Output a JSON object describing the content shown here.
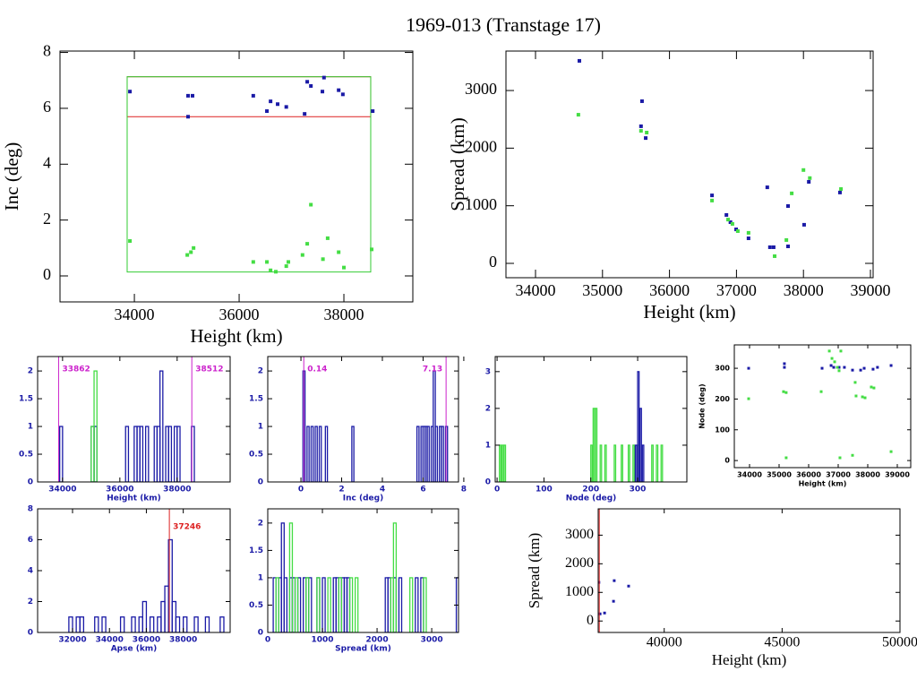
{
  "title": "1969-013 (Transtage 17)",
  "chart_data": [
    {
      "type": "scatter",
      "xlabel": "Height (km)",
      "ylabel": "Inc (deg)",
      "text_color": "#000000",
      "xlim": [
        32580,
        39316
      ],
      "ylim": [
        -0.93,
        8.05
      ],
      "xticks": [
        34000,
        36000,
        38000
      ],
      "yticks": [
        0,
        2,
        4,
        6,
        8
      ],
      "boxes": [
        {
          "color": "#dd2222",
          "xrange": [
            33862,
            38512
          ],
          "yrange": [
            5.7,
            7.13
          ]
        },
        {
          "color": "#33cc33",
          "xrange": [
            33862,
            38512
          ],
          "yrange": [
            0.14,
            7.13
          ]
        }
      ],
      "series": [
        {
          "color": "#1a1aa6",
          "x": [
            33915,
            35025,
            35110,
            35025,
            36270,
            36530,
            36600,
            36735,
            36900,
            37250,
            37300,
            37370,
            37620,
            37590,
            37900,
            37980,
            38550
          ],
          "values": [
            6.6,
            6.45,
            6.45,
            5.7,
            6.45,
            5.9,
            6.25,
            6.15,
            6.05,
            5.8,
            6.95,
            6.8,
            7.1,
            6.6,
            6.65,
            6.5,
            5.9
          ]
        },
        {
          "color": "#44dd44",
          "x": [
            33915,
            35010,
            35080,
            35130,
            36270,
            36530,
            36600,
            36700,
            36900,
            36940,
            37210,
            37300,
            37370,
            37600,
            37690,
            37900,
            38000,
            38530
          ],
          "values": [
            1.25,
            0.75,
            0.85,
            1.0,
            0.5,
            0.5,
            0.2,
            0.15,
            0.35,
            0.5,
            0.75,
            1.15,
            2.55,
            0.6,
            1.35,
            0.85,
            0.3,
            0.95
          ]
        }
      ]
    },
    {
      "type": "scatter",
      "xlabel": "Height (km)",
      "ylabel": "Spread (km)",
      "text_color": "#000000",
      "xlim": [
        33559,
        39040
      ],
      "ylim": [
        -249,
        3685
      ],
      "xticks": [
        34000,
        35000,
        36000,
        37000,
        38000,
        39000
      ],
      "yticks": [
        0,
        1000,
        2000,
        3000
      ],
      "series": [
        {
          "color": "#1a1aa6",
          "x": [
            34655,
            35590,
            35575,
            35645,
            36635,
            36850,
            36910,
            36995,
            37180,
            37460,
            37500,
            37555,
            37770,
            37770,
            38010,
            38080,
            38545
          ],
          "values": [
            3515,
            2815,
            2380,
            2175,
            1180,
            840,
            715,
            590,
            435,
            1320,
            280,
            280,
            995,
            295,
            670,
            1415,
            1230
          ]
        },
        {
          "color": "#44dd44",
          "x": [
            34640,
            35575,
            35660,
            36635,
            36875,
            36940,
            37020,
            37180,
            37570,
            37745,
            37825,
            38000,
            38095,
            38560
          ],
          "values": [
            2580,
            2300,
            2270,
            1090,
            760,
            685,
            560,
            530,
            125,
            405,
            1215,
            1620,
            1480,
            1290
          ]
        }
      ]
    },
    {
      "type": "histogram",
      "xlabel": "Height (km)",
      "text_color": "#1a1aa6",
      "bin_width": 100,
      "xlim": [
        33129,
        39850
      ],
      "ylim": [
        0,
        2.26
      ],
      "xticks": [
        34000,
        36000,
        38000
      ],
      "yticks": [
        0,
        0.5,
        1,
        1.5,
        2
      ],
      "vlines": [
        {
          "color": "#cc22cc",
          "value": 33862,
          "label": "33862"
        },
        {
          "color": "#cc22cc",
          "value": 38512,
          "label": "38512"
        }
      ],
      "series": [
        {
          "color": "#1a1aa6",
          "x": [
            33900,
            35000,
            35100,
            36200,
            36500,
            36600,
            36700,
            36900,
            37200,
            37300,
            37400,
            37600,
            37700,
            37900,
            38000,
            38500
          ],
          "values": [
            1,
            1,
            1,
            1,
            1,
            1,
            1,
            1,
            1,
            1,
            2,
            1,
            1,
            1,
            1,
            1
          ]
        },
        {
          "color": "#44dd44",
          "x": [
            35000,
            35100
          ],
          "values": [
            1,
            2
          ]
        }
      ]
    },
    {
      "type": "histogram",
      "xlabel": "Inc (deg)",
      "text_color": "#1a1aa6",
      "bin_width": 0.1,
      "xlim": [
        -1.63,
        7.74
      ],
      "ylim": [
        0,
        2.26
      ],
      "xticks": [
        0,
        2,
        4,
        6,
        8
      ],
      "yticks": [
        0,
        0.5,
        1,
        1.5,
        2
      ],
      "vlines": [
        {
          "color": "#cc22cc",
          "value": 0.14,
          "label": "0.14"
        },
        {
          "color": "#cc22cc",
          "value": 7.13,
          "label": "7.13"
        }
      ],
      "series": [
        {
          "color": "#1a1aa6",
          "x": [
            0.1,
            0.3,
            0.5,
            0.7,
            0.9,
            1.2,
            2.5,
            5.7,
            5.9,
            6.0,
            6.1,
            6.2,
            6.4,
            6.5,
            6.6,
            6.8,
            6.9,
            7.1
          ],
          "values": [
            2,
            1,
            1,
            1,
            1,
            1,
            1,
            1,
            1,
            1,
            1,
            1,
            1,
            2,
            1,
            1,
            1,
            1
          ]
        }
      ]
    },
    {
      "type": "histogram",
      "xlabel": "Node (deg)",
      "text_color": "#1a1aa6",
      "bin_width": 3,
      "xlim": [
        -4,
        405
      ],
      "ylim": [
        0,
        3.41
      ],
      "xticks": [
        0,
        100,
        200,
        300
      ],
      "yticks": [
        0,
        1,
        2,
        3
      ],
      "series": [
        {
          "color": "#44dd44",
          "x": [
            5,
            10,
            15,
            200,
            205,
            210,
            220,
            230,
            250,
            265,
            280,
            290,
            300,
            330,
            340,
            350
          ],
          "values": [
            1,
            1,
            1,
            1,
            2,
            2,
            1,
            1,
            1,
            1,
            1,
            1,
            1,
            1,
            1,
            1
          ]
        },
        {
          "color": "#1a1aa6",
          "x": [
            295,
            300,
            305,
            310
          ],
          "values": [
            1,
            3,
            2,
            1
          ]
        }
      ]
    },
    {
      "type": "scatter",
      "xlabel": "Height (km)",
      "ylabel": "Node (deg)",
      "text_color": "#000000",
      "xlim": [
        33485,
        39455
      ],
      "ylim": [
        -23,
        376
      ],
      "xticks": [
        34000,
        35000,
        36000,
        37000,
        38000,
        39000
      ],
      "yticks": [
        0,
        100,
        200,
        300
      ],
      "series": [
        {
          "color": "#1a1aa6",
          "x": [
            33970,
            35180,
            35180,
            36455,
            36760,
            36850,
            37030,
            37210,
            37485,
            37760,
            37880,
            38180,
            38330,
            38790
          ],
          "values": [
            300,
            315,
            303,
            300,
            309,
            303,
            303,
            303,
            294,
            294,
            300,
            297,
            303,
            309
          ]
        },
        {
          "color": "#44dd44",
          "x": [
            33970,
            35150,
            35240,
            35240,
            36425,
            36700,
            36790,
            36880,
            36970,
            37030,
            37090,
            37060,
            37485,
            37575,
            37605,
            37820,
            37910,
            38120,
            38210,
            38790
          ],
          "values": [
            201,
            224,
            221,
            9,
            224,
            356,
            332,
            321,
            303,
            292,
            356,
            9,
            17,
            254,
            210,
            207,
            204,
            239,
            236,
            29
          ]
        }
      ]
    },
    {
      "type": "histogram",
      "xlabel": "Apse (km)",
      "text_color": "#1a1aa6",
      "bin_width": 200,
      "xlim": [
        30107,
        40540
      ],
      "ylim": [
        0,
        8.0
      ],
      "xticks": [
        32000,
        34000,
        36000,
        38000
      ],
      "yticks": [
        0,
        2,
        4,
        6,
        8
      ],
      "vlines": [
        {
          "color": "#dd2222",
          "value": 37246,
          "label": "37246"
        }
      ],
      "series": [
        {
          "color": "#1a1aa6",
          "x": [
            31800,
            32200,
            32400,
            33200,
            33600,
            34600,
            35200,
            35600,
            35800,
            36200,
            36600,
            36800,
            37000,
            37200,
            37400,
            37600,
            38000,
            38600,
            39200,
            40000
          ],
          "values": [
            1,
            1,
            1,
            1,
            1,
            1,
            1,
            1,
            2,
            1,
            1,
            2,
            3,
            6,
            2,
            1,
            1,
            1,
            1,
            1
          ]
        }
      ]
    },
    {
      "type": "histogram",
      "xlabel": "Spread (km)",
      "text_color": "#1a1aa6",
      "bin_width": 50,
      "xlim": [
        0,
        3490
      ],
      "ylim": [
        0,
        2.26
      ],
      "xticks": [
        0,
        1000,
        2000,
        3000
      ],
      "yticks": [
        0,
        0.5,
        1,
        1.5,
        2
      ],
      "series": [
        {
          "color": "#1a1aa6",
          "x": [
            100,
            200,
            250,
            300,
            400,
            450,
            550,
            650,
            700,
            750,
            900,
            1000,
            1200,
            1250,
            1300,
            1350,
            1400,
            1450,
            2150,
            2200,
            2300,
            2400,
            2700,
            2800,
            3450
          ],
          "values": [
            1,
            1,
            2,
            1,
            1,
            1,
            1,
            1,
            1,
            1,
            1,
            1,
            1,
            1,
            1,
            1,
            1,
            1,
            1,
            1,
            1,
            1,
            1,
            1,
            1
          ]
        },
        {
          "color": "#44dd44",
          "x": [
            150,
            400,
            500,
            700,
            900,
            1100,
            1300,
            1500,
            1600,
            2250,
            2300,
            2600,
            2850
          ],
          "values": [
            1,
            2,
            1,
            1,
            1,
            1,
            1,
            1,
            1,
            1,
            2,
            1,
            1
          ]
        }
      ]
    },
    {
      "type": "scatter",
      "xlabel": "Height (km)",
      "ylabel": "Spread (km)",
      "text_color": "#1a1aa6",
      "xlim": [
        37200,
        50000
      ],
      "ylim": [
        -400,
        3920
      ],
      "xticks": [
        40000,
        45000,
        50000
      ],
      "yticks": [
        0,
        1000,
        2000,
        3000
      ],
      "vlines": [
        {
          "color": "#dd2222",
          "value": 37246
        }
      ],
      "series": [
        {
          "color": "#1a1aa6",
          "x": [
            37230,
            37280,
            37470,
            37880,
            37850,
            38490
          ],
          "values": [
            1350,
            250,
            280,
            1410,
            690,
            1220
          ]
        }
      ]
    }
  ]
}
